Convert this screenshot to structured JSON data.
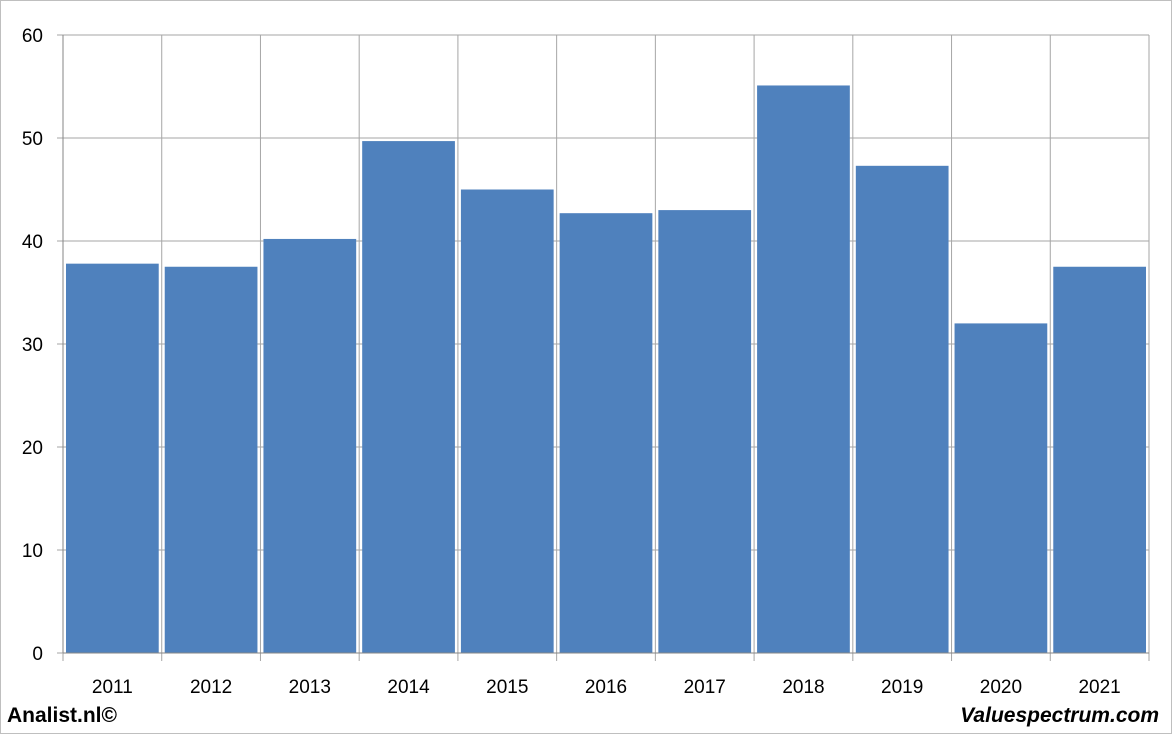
{
  "chart_data": {
    "type": "bar",
    "title": "",
    "xlabel": "",
    "ylabel": "",
    "categories": [
      "2011",
      "2012",
      "2013",
      "2014",
      "2015",
      "2016",
      "2017",
      "2018",
      "2019",
      "2020",
      "2021"
    ],
    "values": [
      37.8,
      37.5,
      40.2,
      49.7,
      45.0,
      42.7,
      43.0,
      55.1,
      47.3,
      32.0,
      37.5
    ],
    "ylim": [
      0,
      60
    ],
    "yticks": [
      "0",
      "10",
      "20",
      "30",
      "40",
      "50",
      "60"
    ],
    "grid": true,
    "bar_color": "#4f81bd",
    "grid_color": "#a6a6a6"
  },
  "footer": {
    "left_text": "Analist.nl©",
    "right_text": "Valuespectrum.com"
  }
}
